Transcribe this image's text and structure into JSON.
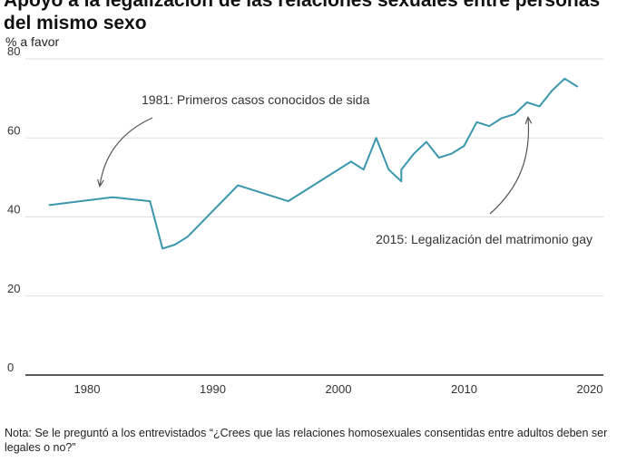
{
  "title": "Apoyo a la legalización de las relaciones sexuales entre personas del mismo sexo",
  "y_axis_label": "% a favor",
  "note": "Nota: Se le preguntó a los entrevistados “¿Crees que las relaciones homosexuales consentidas entre adultos deben ser legales o no?”",
  "colors": {
    "line": "#3a96ad",
    "grid": "#dddddd",
    "axis": "#222222",
    "arrow": "#555555"
  },
  "chart_data": {
    "type": "line",
    "title": "Apoyo a la legalización de las relaciones sexuales entre personas del mismo sexo",
    "ylabel": "% a favor",
    "xlabel": "",
    "xlim": [
      1975,
      2021
    ],
    "ylim": [
      0,
      80
    ],
    "x_ticks": [
      1980,
      1990,
      2000,
      2010,
      2020
    ],
    "y_ticks": [
      0,
      20,
      40,
      60,
      80
    ],
    "series": [
      {
        "name": "% a favor",
        "x": [
          1977,
          1982,
          1985,
          1986,
          1987,
          1988,
          1992,
          1996,
          2001,
          2002,
          2003,
          2004,
          2005,
          2005,
          2006,
          2007,
          2008,
          2009,
          2010,
          2011,
          2012,
          2013,
          2014,
          2015,
          2016,
          2017,
          2018,
          2019
        ],
        "values": [
          43,
          45,
          44,
          32,
          33,
          35,
          48,
          44,
          54,
          52,
          60,
          52,
          49,
          52,
          56,
          59,
          55,
          56,
          58,
          64,
          63,
          65,
          66,
          69,
          68,
          72,
          75,
          73
        ]
      }
    ],
    "annotations": [
      {
        "text": "1981: Primeros casos conocidos de sida",
        "x": 1981,
        "y": 47
      },
      {
        "text": "2015: Legalización del matrimonio gay",
        "x": 2015,
        "y": 65
      }
    ]
  }
}
